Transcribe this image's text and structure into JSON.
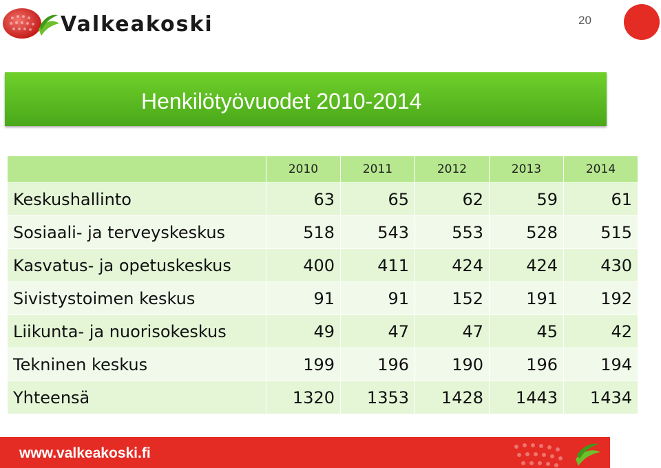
{
  "header": {
    "logo_text": "Valkeakoski",
    "page_number": "20",
    "brand_colors": {
      "red": "#e42b24",
      "green": "#4aa81a"
    }
  },
  "slide": {
    "title": "Henkilötyövuodet 2010-2014"
  },
  "table": {
    "columns": [
      "2010",
      "2011",
      "2012",
      "2013",
      "2014"
    ],
    "rows": [
      {
        "label": "Keskushallinto",
        "values": [
          "63",
          "65",
          "62",
          "59",
          "61"
        ]
      },
      {
        "label": "Sosiaali- ja terveyskeskus",
        "values": [
          "518",
          "543",
          "553",
          "528",
          "515"
        ]
      },
      {
        "label": "Kasvatus- ja opetuskeskus",
        "values": [
          "400",
          "411",
          "424",
          "424",
          "430"
        ]
      },
      {
        "label": "Sivistystoimen keskus",
        "values": [
          "91",
          "91",
          "152",
          "191",
          "192"
        ]
      },
      {
        "label": "Liikunta- ja nuorisokeskus",
        "values": [
          "49",
          "47",
          "47",
          "45",
          "42"
        ]
      },
      {
        "label": "Tekninen keskus",
        "values": [
          "199",
          "196",
          "190",
          "196",
          "194"
        ]
      },
      {
        "label": "Yhteensä",
        "values": [
          "1320",
          "1353",
          "1428",
          "1443",
          "1434"
        ]
      }
    ]
  },
  "footer": {
    "url": "www.valkeakoski.fi"
  }
}
